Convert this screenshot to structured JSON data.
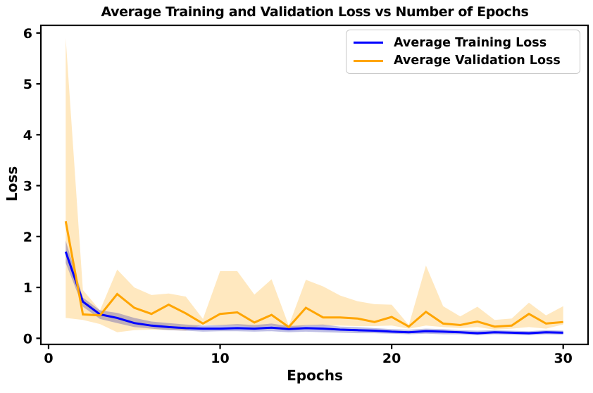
{
  "chart_data": {
    "type": "line",
    "title": "Average Training and Validation Loss vs Number of Epochs",
    "xlabel": "Epochs",
    "ylabel": "Loss",
    "x": [
      1,
      2,
      3,
      4,
      5,
      6,
      7,
      8,
      9,
      10,
      11,
      12,
      13,
      14,
      15,
      16,
      17,
      18,
      19,
      20,
      21,
      22,
      23,
      24,
      25,
      26,
      27,
      28,
      29,
      30
    ],
    "series": [
      {
        "name": "Average Training Loss",
        "color": "#0000ff",
        "band_color": "rgba(40,40,170,0.30)",
        "values": [
          1.7,
          0.72,
          0.47,
          0.4,
          0.3,
          0.25,
          0.22,
          0.2,
          0.19,
          0.19,
          0.2,
          0.19,
          0.21,
          0.18,
          0.2,
          0.19,
          0.17,
          0.16,
          0.15,
          0.13,
          0.12,
          0.14,
          0.13,
          0.12,
          0.1,
          0.12,
          0.11,
          0.1,
          0.12,
          0.11
        ],
        "band_upper": [
          1.92,
          0.8,
          0.55,
          0.5,
          0.4,
          0.33,
          0.3,
          0.27,
          0.25,
          0.26,
          0.28,
          0.26,
          0.29,
          0.24,
          0.26,
          0.27,
          0.23,
          0.22,
          0.2,
          0.18,
          0.17,
          0.19,
          0.18,
          0.16,
          0.15,
          0.16,
          0.15,
          0.14,
          0.16,
          0.15
        ],
        "band_lower": [
          1.48,
          0.62,
          0.38,
          0.3,
          0.22,
          0.19,
          0.16,
          0.15,
          0.13,
          0.14,
          0.14,
          0.13,
          0.14,
          0.12,
          0.13,
          0.12,
          0.11,
          0.1,
          0.1,
          0.09,
          0.08,
          0.09,
          0.08,
          0.08,
          0.06,
          0.08,
          0.07,
          0.06,
          0.08,
          0.07
        ]
      },
      {
        "name": "Average Validation Loss",
        "color": "#ffa500",
        "band_color": "rgba(255,165,0,0.25)",
        "values": [
          2.3,
          0.47,
          0.45,
          0.87,
          0.6,
          0.48,
          0.66,
          0.49,
          0.29,
          0.48,
          0.51,
          0.31,
          0.46,
          0.22,
          0.6,
          0.41,
          0.41,
          0.39,
          0.32,
          0.42,
          0.23,
          0.52,
          0.29,
          0.26,
          0.33,
          0.23,
          0.25,
          0.48,
          0.29,
          0.32
        ],
        "band_upper": [
          5.9,
          0.95,
          0.55,
          1.35,
          1.0,
          0.85,
          0.88,
          0.82,
          0.38,
          1.32,
          1.32,
          0.86,
          1.16,
          0.25,
          1.15,
          1.02,
          0.84,
          0.73,
          0.67,
          0.66,
          0.26,
          1.43,
          0.63,
          0.43,
          0.62,
          0.36,
          0.39,
          0.7,
          0.45,
          0.63
        ],
        "band_lower": [
          0.4,
          0.36,
          0.28,
          0.12,
          0.16,
          0.17,
          0.16,
          0.15,
          0.27,
          0.25,
          0.25,
          0.22,
          0.25,
          0.19,
          0.25,
          0.25,
          0.25,
          0.24,
          0.24,
          0.25,
          0.19,
          0.25,
          0.22,
          0.2,
          0.22,
          0.17,
          0.19,
          0.22,
          0.19,
          0.27
        ]
      }
    ],
    "xlim": [
      -0.45,
      31.45
    ],
    "ylim": [
      -0.12,
      6.15
    ],
    "xticks": [
      0,
      10,
      20,
      30
    ],
    "yticks": [
      0,
      1,
      2,
      3,
      4,
      5,
      6
    ],
    "grid": false,
    "legend_position": "upper right",
    "axis_color": "#000000",
    "background_color": "#ffffff"
  }
}
